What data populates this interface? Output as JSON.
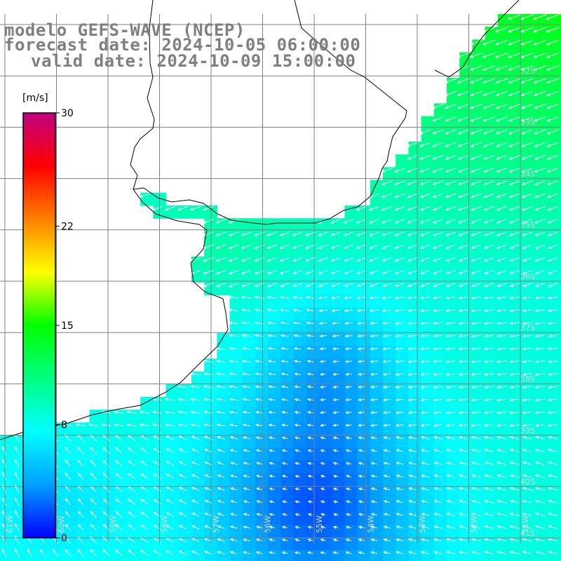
{
  "title": {
    "line1": "modelo GEFS-WAVE (NCEP)",
    "line2": "forecast date: 2024-10-05 06:00:00",
    "line3": "valid date: 2024-10-09 15:00:00"
  },
  "colorbar": {
    "units": "[m/s]",
    "ticks": [
      {
        "label": "30",
        "value": 30
      },
      {
        "label": "22",
        "value": 22
      },
      {
        "label": "15",
        "value": 15
      },
      {
        "label": "8",
        "value": 8
      },
      {
        "label": "0",
        "value": 0
      }
    ],
    "min": 0,
    "max": 30,
    "colors": [
      "#0000ff",
      "#00a0ff",
      "#00ffff",
      "#00ff80",
      "#00ff00",
      "#ffff00",
      "#ff8000",
      "#ff0000",
      "#c00080"
    ]
  },
  "lat_labels": [
    "32S",
    "33S",
    "34S",
    "35S",
    "36S",
    "37S",
    "38S",
    "39S",
    "40S",
    "41S"
  ],
  "lon_labels": [
    "61W",
    "60W",
    "59W",
    "58W",
    "57W",
    "56W",
    "55W",
    "54W",
    "53W",
    "52W",
    "51W"
  ],
  "colors": {
    "land": "#ffffff",
    "coast": "#000000",
    "grid": "#808080",
    "vector": "#ffffff",
    "title": "#7f7f7f"
  }
}
